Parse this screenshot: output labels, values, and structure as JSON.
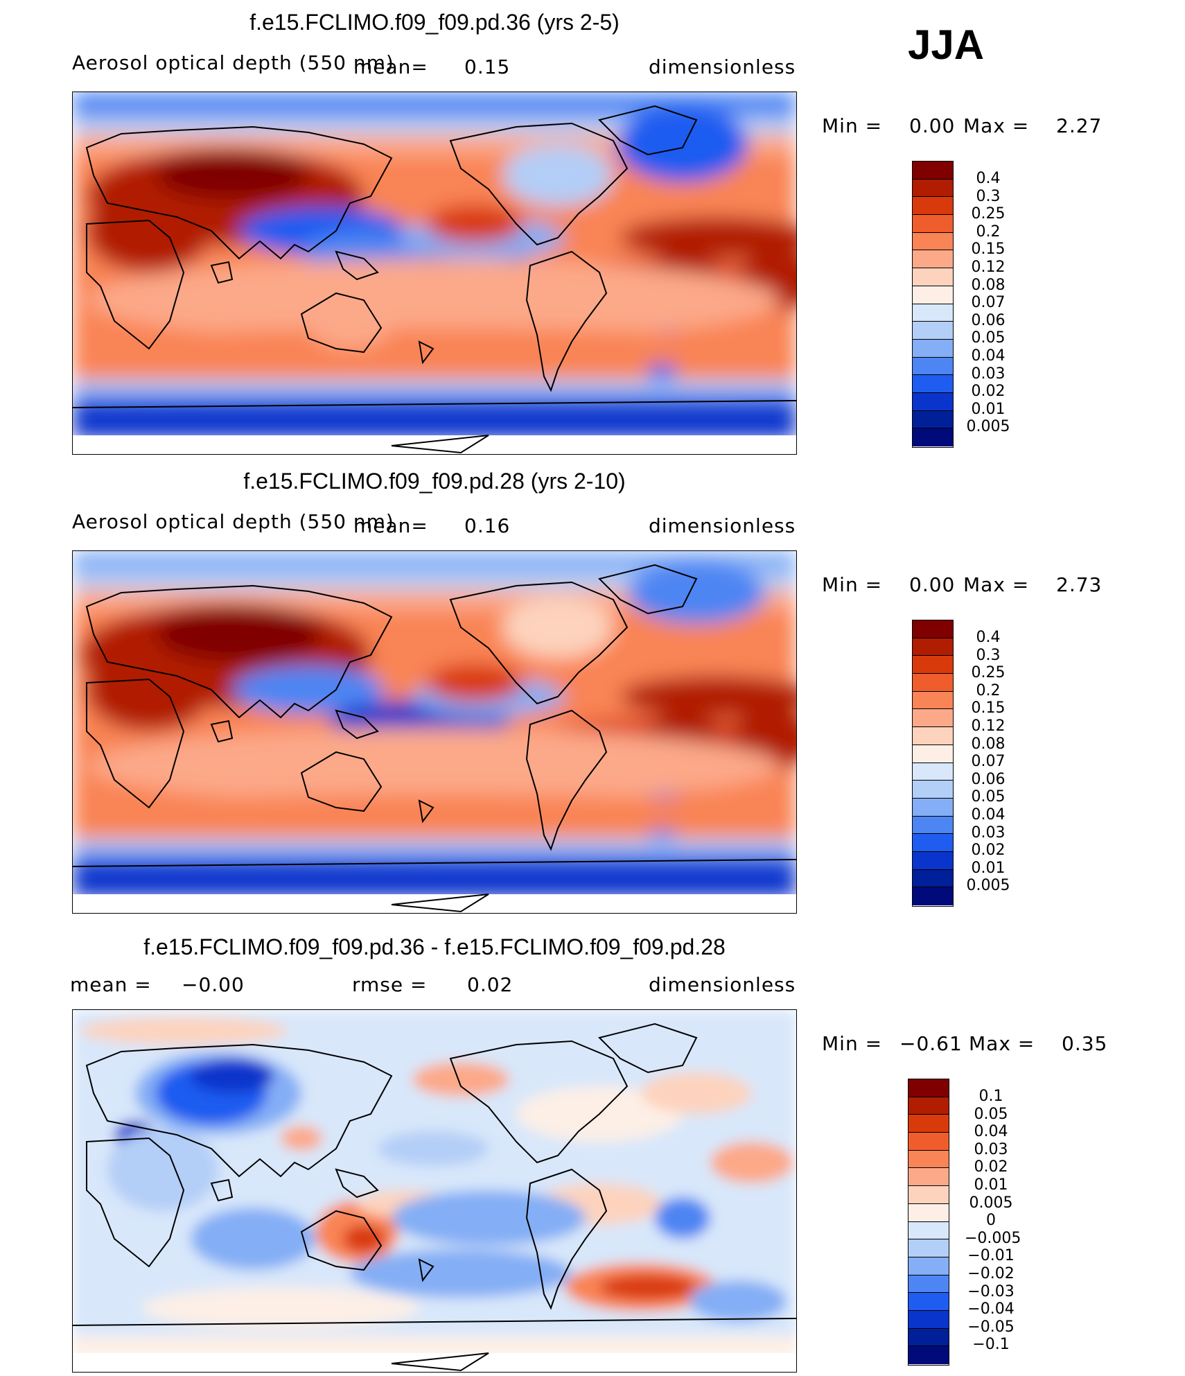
{
  "season": "JJA",
  "panels": [
    {
      "title": "f.e15.FCLIMO.f09_f09.pd.36 (yrs 2-5)",
      "variable": "Aerosol optical depth (550 nm)",
      "mean_label": "mean=",
      "mean_value": "0.15",
      "units": "dimensionless",
      "min_label": "Min =",
      "min_value": "0.00",
      "max_label": "Max =",
      "max_value": "2.27",
      "levels": [
        "0.4",
        "0.3",
        "0.25",
        "0.2",
        "0.15",
        "0.12",
        "0.08",
        "0.07",
        "0.06",
        "0.05",
        "0.04",
        "0.03",
        "0.02",
        "0.01",
        "0.005"
      ]
    },
    {
      "title": "f.e15.FCLIMO.f09_f09.pd.28 (yrs 2-10)",
      "variable": "Aerosol optical depth (550 nm)",
      "mean_label": "mean=",
      "mean_value": "0.16",
      "units": "dimensionless",
      "min_label": "Min =",
      "min_value": "0.00",
      "max_label": "Max =",
      "max_value": "2.73",
      "levels": [
        "0.4",
        "0.3",
        "0.25",
        "0.2",
        "0.15",
        "0.12",
        "0.08",
        "0.07",
        "0.06",
        "0.05",
        "0.04",
        "0.03",
        "0.02",
        "0.01",
        "0.005"
      ]
    },
    {
      "title": "f.e15.FCLIMO.f09_f09.pd.36 - f.e15.FCLIMO.f09_f09.pd.28",
      "mean_label": "mean =",
      "mean_value": "−0.00",
      "rmse_label": "rmse =",
      "rmse_value": "0.02",
      "units": "dimensionless",
      "min_label": "Min =",
      "min_value": "−0.61",
      "max_label": "Max =",
      "max_value": "0.35",
      "levels": [
        "0.1",
        "0.05",
        "0.04",
        "0.03",
        "0.02",
        "0.01",
        "0.005",
        "0",
        "−0.005",
        "−0.01",
        "−0.02",
        "−0.03",
        "−0.04",
        "−0.05",
        "−0.1"
      ]
    }
  ],
  "colors": {
    "abs_scale": [
      "#800000",
      "#b11d00",
      "#d93a0b",
      "#f05d2c",
      "#f98455",
      "#fca989",
      "#fdd3bd",
      "#fdefe6",
      "#d8e7fa",
      "#b3cef7",
      "#84aef5",
      "#4d85f3",
      "#1f5cf0",
      "#0a35cc",
      "#00209a",
      "#000a7a"
    ],
    "diff_scale": [
      "#800000",
      "#b11d00",
      "#d93a0b",
      "#f05d2c",
      "#f98455",
      "#fca989",
      "#fdd3bd",
      "#fdefe6",
      "#d8e7fa",
      "#b3cef7",
      "#84aef5",
      "#4d85f3",
      "#1f5cf0",
      "#0a35cc",
      "#00209a",
      "#000a7a"
    ]
  }
}
